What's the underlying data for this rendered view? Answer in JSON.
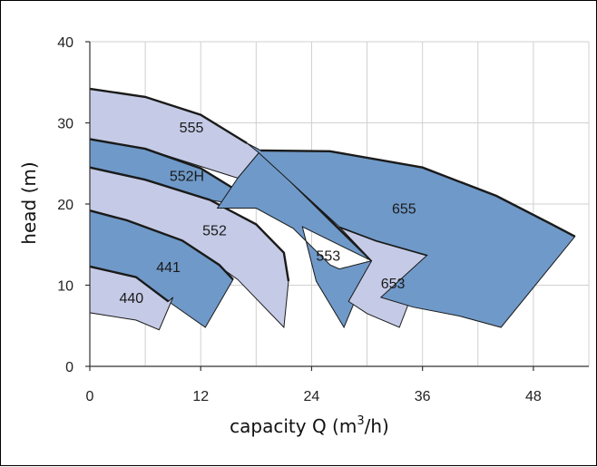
{
  "chart_data": {
    "type": "area",
    "title": "",
    "xlabel": "capacity Q (m",
    "xlabel_sup": "3",
    "xlabel_tail": "/h)",
    "ylabel": "head (m)",
    "xlim": [
      0,
      54
    ],
    "ylim": [
      0,
      40
    ],
    "xticks": [
      0,
      12,
      24,
      36,
      48
    ],
    "yticks": [
      0,
      10,
      20,
      30,
      40
    ],
    "grid": true,
    "colors": {
      "light": "#c5cbe6",
      "dark": "#6f99c8"
    },
    "regions": [
      {
        "name": "555",
        "shade": "light",
        "outline": [
          [
            0,
            34.2
          ],
          [
            6,
            33.2
          ],
          [
            12,
            31
          ],
          [
            17,
            27.5
          ],
          [
            18.5,
            26.6
          ],
          [
            16,
            23.2
          ],
          [
            6,
            26.8
          ],
          [
            0,
            28
          ]
        ],
        "upper": [
          [
            0,
            34.2
          ],
          [
            6,
            33.2
          ],
          [
            12,
            31
          ],
          [
            17,
            27.5
          ]
        ],
        "label_at": [
          11,
          29.5
        ]
      },
      {
        "name": "552H",
        "shade": "dark",
        "outline": [
          [
            0,
            28
          ],
          [
            6,
            26.8
          ],
          [
            12,
            24.4
          ],
          [
            16,
            21.6
          ],
          [
            18,
            19.5
          ],
          [
            13,
            20.5
          ],
          [
            6,
            23
          ],
          [
            0,
            24.5
          ]
        ],
        "upper": [
          [
            0,
            28
          ],
          [
            6,
            26.8
          ],
          [
            12,
            24.4
          ],
          [
            16,
            21.6
          ],
          [
            18,
            19.5
          ]
        ],
        "label_at": [
          10.5,
          23.5
        ]
      },
      {
        "name": "552",
        "shade": "light",
        "outline": [
          [
            0,
            24.5
          ],
          [
            6,
            23
          ],
          [
            13,
            20.5
          ],
          [
            18,
            17.5
          ],
          [
            21,
            14
          ],
          [
            21.5,
            10.5
          ],
          [
            21,
            4.8
          ],
          [
            16,
            10.7
          ],
          [
            10,
            15.5
          ],
          [
            4,
            18
          ],
          [
            0,
            19.2
          ]
        ],
        "upper": [
          [
            0,
            24.5
          ],
          [
            6,
            23
          ],
          [
            13,
            20.5
          ],
          [
            18,
            17.5
          ],
          [
            21,
            14
          ],
          [
            21.5,
            10.5
          ]
        ],
        "label_at": [
          13.5,
          16.8
        ]
      },
      {
        "name": "441",
        "shade": "dark",
        "outline": [
          [
            0,
            19.2
          ],
          [
            4,
            18
          ],
          [
            10,
            15.5
          ],
          [
            14,
            12.5
          ],
          [
            15.5,
            10.7
          ],
          [
            12.5,
            4.8
          ],
          [
            8.5,
            8
          ],
          [
            5,
            11
          ],
          [
            0,
            12.3
          ]
        ],
        "upper": [
          [
            0,
            19.2
          ],
          [
            4,
            18
          ],
          [
            10,
            15.5
          ],
          [
            14,
            12.5
          ],
          [
            15.5,
            10.7
          ]
        ],
        "label_at": [
          8.5,
          12.3
        ]
      },
      {
        "name": "440",
        "shade": "light",
        "outline": [
          [
            0,
            12.3
          ],
          [
            5,
            11
          ],
          [
            8.5,
            8
          ],
          [
            9,
            8.5
          ],
          [
            7.5,
            4.5
          ],
          [
            5,
            5.7
          ],
          [
            0,
            6.6
          ]
        ],
        "upper": [
          [
            0,
            12.3
          ],
          [
            5,
            11
          ],
          [
            8.5,
            8
          ]
        ],
        "label_at": [
          4.5,
          8.5
        ]
      },
      {
        "name": "553",
        "shade": "dark",
        "outline": [
          [
            18.5,
            26.6
          ],
          [
            16,
            23.2
          ],
          [
            13.8,
            19.5
          ],
          [
            18,
            19.5
          ],
          [
            22,
            17
          ],
          [
            26,
            12.5
          ],
          [
            27,
            12
          ],
          [
            30.5,
            13
          ],
          [
            27.5,
            4.8
          ],
          [
            24.5,
            10.5
          ],
          [
            23,
            17.2
          ],
          [
            30.5,
            13
          ]
        ],
        "upper": [
          [
            18.5,
            26.6
          ],
          [
            22,
            22.5
          ],
          [
            26,
            18
          ],
          [
            30.5,
            13
          ]
        ],
        "label_at": [
          25.8,
          13.7
        ]
      },
      {
        "name": "653",
        "shade": "light",
        "outline": [
          [
            27,
            17.2
          ],
          [
            31,
            15.5
          ],
          [
            36.5,
            13.7
          ],
          [
            33.5,
            4.8
          ],
          [
            30,
            6.5
          ],
          [
            28,
            8
          ],
          [
            30.5,
            13
          ]
        ],
        "upper": [
          [
            27,
            17.2
          ],
          [
            31,
            15.5
          ],
          [
            36.5,
            13.7
          ]
        ],
        "label_at": [
          32.8,
          10.3
        ]
      },
      {
        "name": "655",
        "shade": "dark",
        "outline": [
          [
            17,
            27.5
          ],
          [
            18.5,
            26.6
          ],
          [
            26,
            26.5
          ],
          [
            36,
            24.5
          ],
          [
            44,
            21
          ],
          [
            50,
            17.5
          ],
          [
            52.5,
            16
          ],
          [
            44.5,
            4.8
          ],
          [
            40,
            6.2
          ],
          [
            35,
            7.3
          ],
          [
            31.5,
            8.5
          ],
          [
            36.5,
            13.7
          ],
          [
            31,
            15.5
          ],
          [
            27,
            17.2
          ],
          [
            18.2,
            26.4
          ]
        ],
        "upper": [
          [
            18.5,
            26.6
          ],
          [
            26,
            26.5
          ],
          [
            36,
            24.5
          ],
          [
            44,
            21
          ],
          [
            50,
            17.5
          ],
          [
            52.5,
            16
          ]
        ],
        "label_at": [
          34,
          19.5
        ]
      }
    ]
  }
}
